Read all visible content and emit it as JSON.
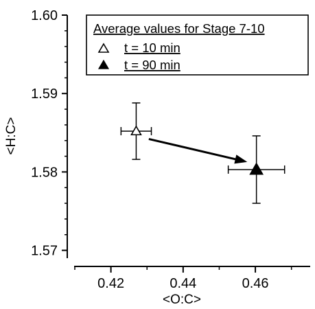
{
  "chart_data": {
    "type": "scatter",
    "xlabel": "<O:C>",
    "ylabel": "<H:C>",
    "xlim": [
      0.41,
      0.475
    ],
    "ylim": [
      1.569,
      1.6
    ],
    "x_ticks": [
      0.42,
      0.44,
      0.46
    ],
    "x_tick_labels": [
      "0.42",
      "0.44",
      "0.46"
    ],
    "x_minor_ticks": [
      0.41,
      0.43,
      0.45,
      0.47
    ],
    "y_ticks": [
      1.57,
      1.58,
      1.59,
      1.6
    ],
    "y_tick_labels": [
      "1.57",
      "1.58",
      "1.59",
      "1.60"
    ],
    "y_minor_ticks": [
      1.572,
      1.574,
      1.576,
      1.578,
      1.582,
      1.584,
      1.586,
      1.588,
      1.592,
      1.594,
      1.596,
      1.598
    ],
    "grid": false,
    "legend": {
      "title": "Average values for Stage 7-10",
      "placement": "top-right",
      "entries": [
        "t = 10 min",
        "t = 90 min"
      ]
    },
    "series": [
      {
        "name": "t = 10 min",
        "marker": "open-triangle",
        "x": [
          0.427
        ],
        "y": [
          1.5852
        ],
        "x_err": [
          0.0042
        ],
        "y_err": [
          0.0036
        ]
      },
      {
        "name": "t = 90 min",
        "marker": "filled-triangle",
        "x": [
          0.4603
        ],
        "y": [
          1.5803
        ],
        "x_err": [
          0.0078
        ],
        "y_err": [
          0.0043
        ]
      }
    ],
    "annotations": [
      {
        "type": "arrow",
        "from": [
          0.4305,
          1.5842
        ],
        "to": [
          0.4575,
          1.5813
        ]
      }
    ]
  }
}
